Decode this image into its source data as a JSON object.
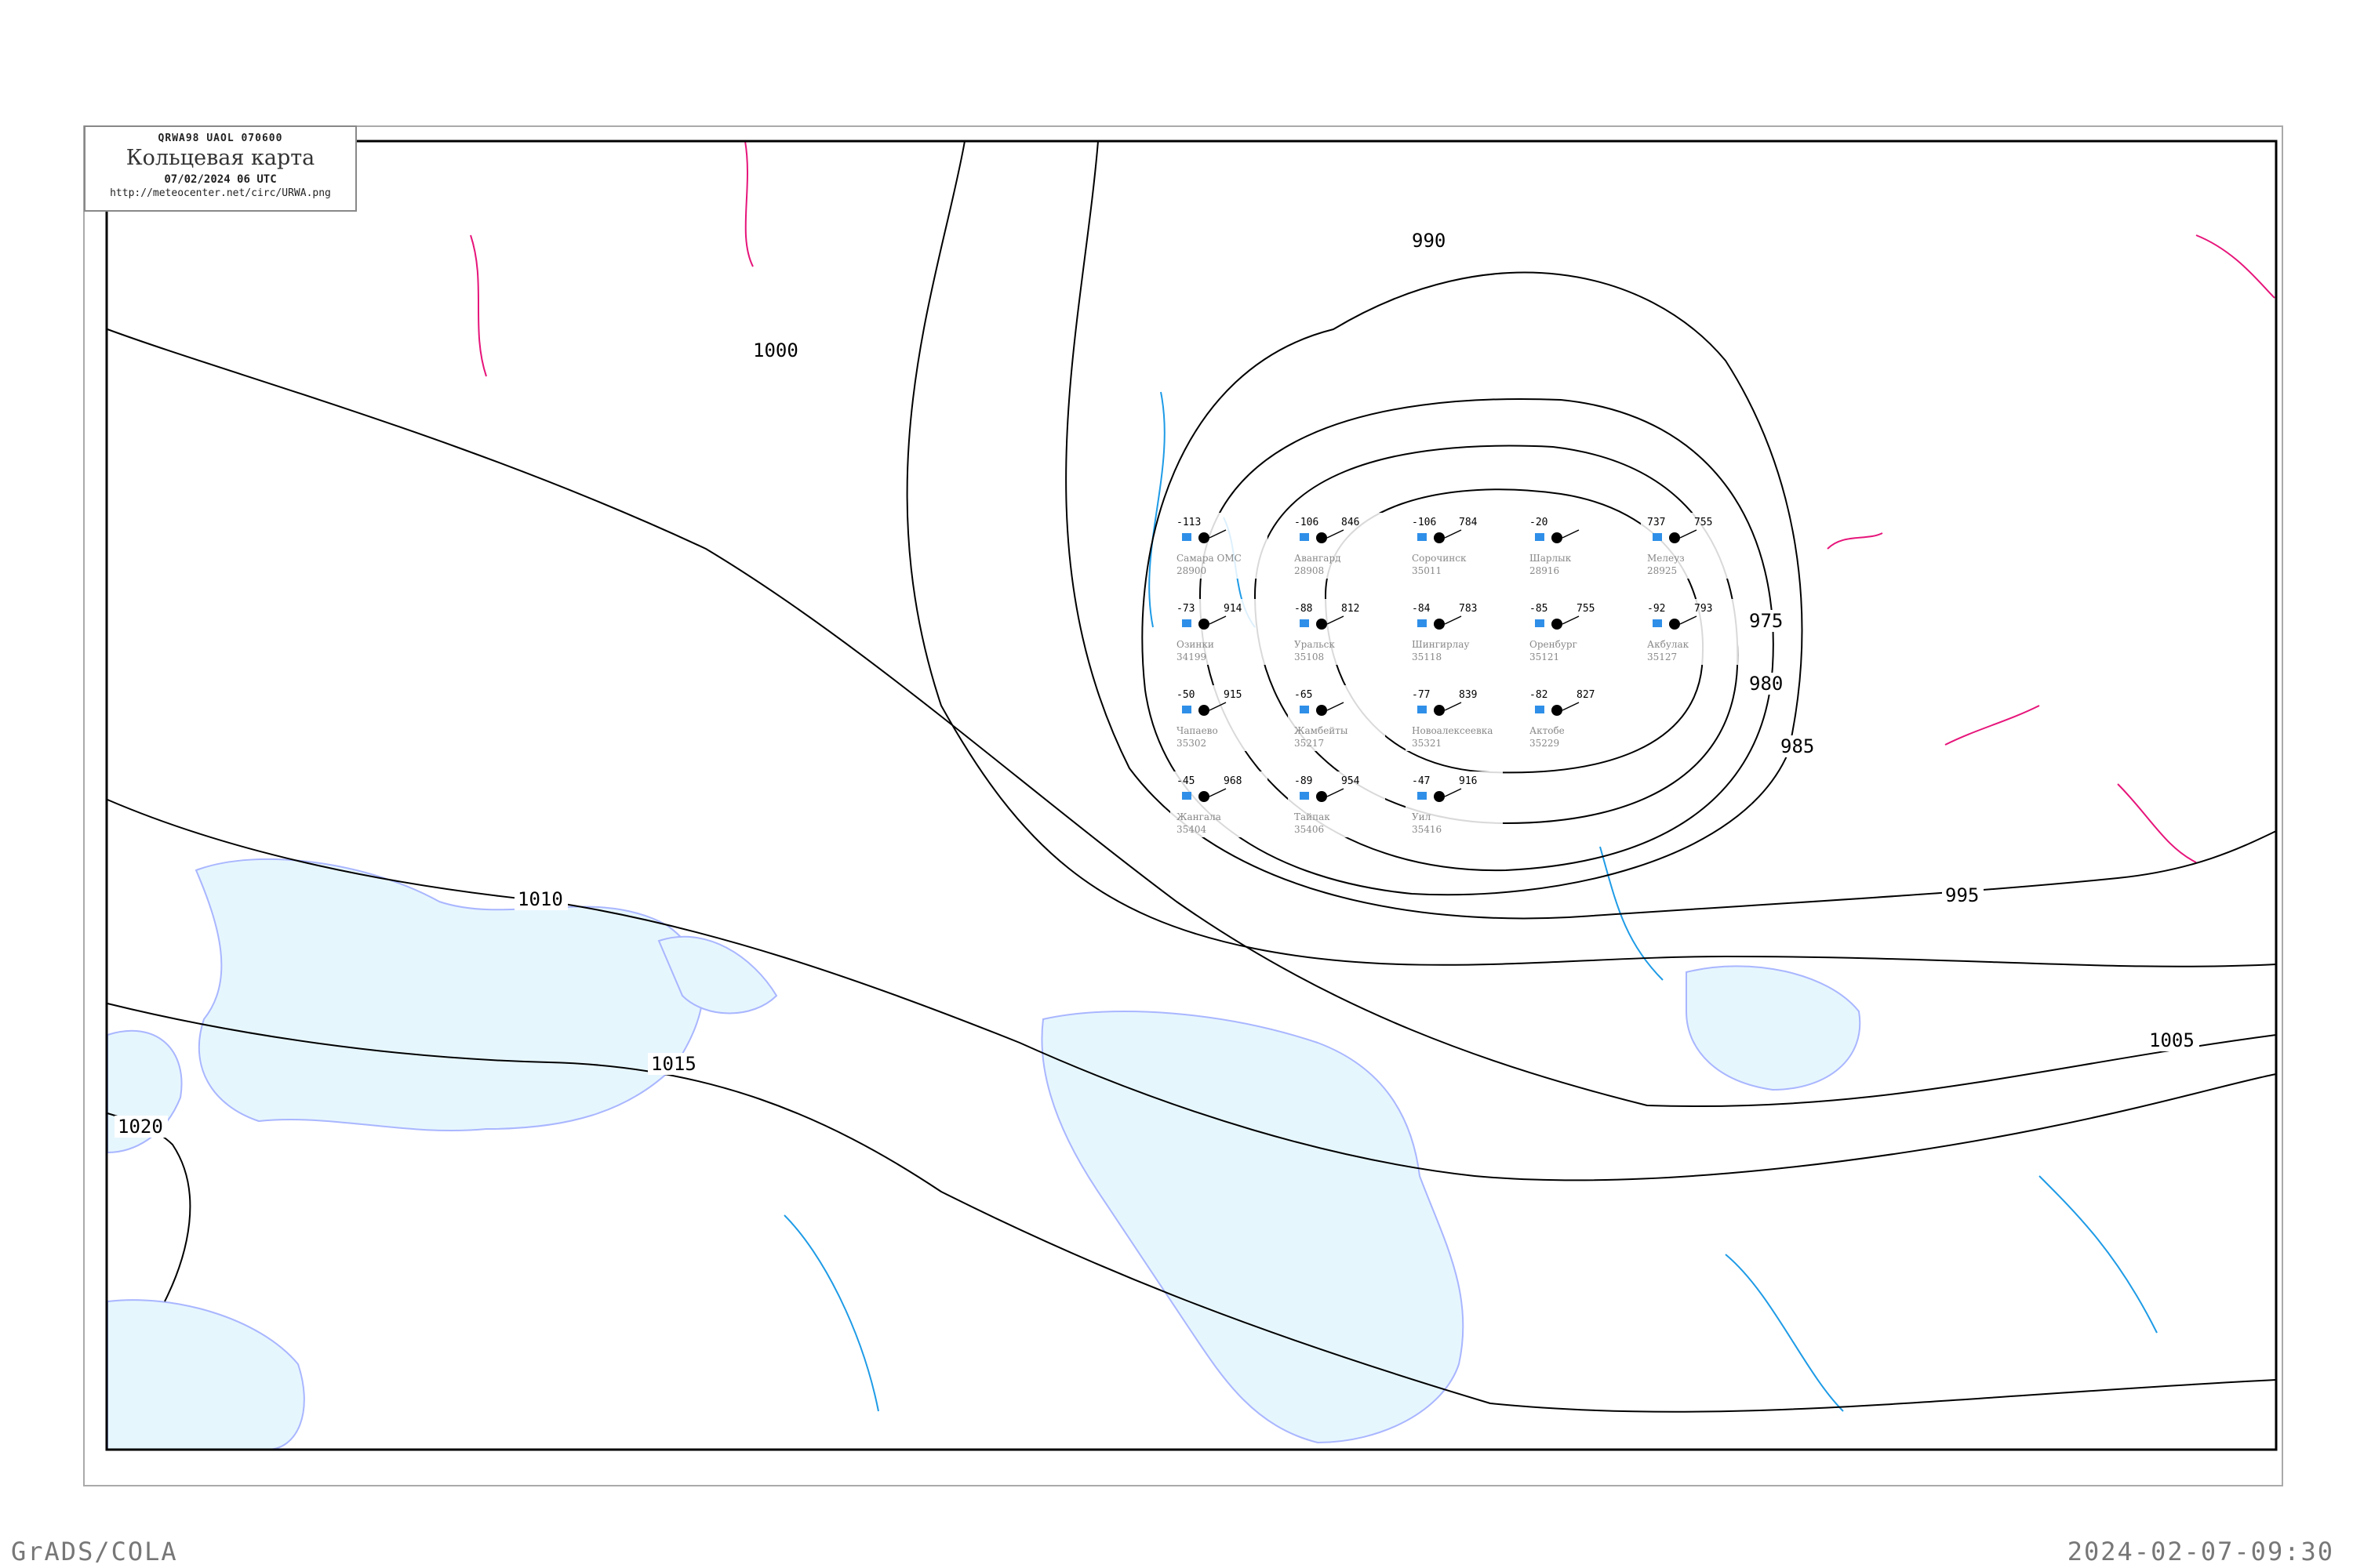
{
  "header": {
    "bulletin": "QRWA98   UAOL   070600",
    "title": "Кольцевая карта",
    "datetime": "07/02/2024 06 UTC",
    "url": "http://meteocenter.net/circ/URWA.png"
  },
  "footer": {
    "left": "GrADS/COLA",
    "right": "2024-02-07-09:30"
  },
  "colors": {
    "isobar": "#000000",
    "water": "#e6f6fd",
    "coast": "#a9b6ff",
    "isotherm": "#1e9be6",
    "front": "#e6147a",
    "precip_marker": "#2f8fe8",
    "station_name": "#888888"
  },
  "isobars": [
    {
      "label": "975"
    },
    {
      "label": "980"
    },
    {
      "label": "985"
    },
    {
      "label": "990"
    },
    {
      "label": "995"
    },
    {
      "label": "1000"
    },
    {
      "label": "1005"
    },
    {
      "label": "1010"
    },
    {
      "label": "1015"
    },
    {
      "label": "1020"
    }
  ],
  "stations": [
    {
      "name": "Самара ОМС",
      "index": "28900",
      "pressure": "",
      "temp": "-113"
    },
    {
      "name": "Авангард",
      "index": "28908",
      "pressure": "846",
      "temp": "-106"
    },
    {
      "name": "Шарлык",
      "index": "28916",
      "pressure": "",
      "temp": "-20"
    },
    {
      "name": "Мелеуз",
      "index": "28925",
      "pressure": "755",
      "temp": "737"
    },
    {
      "name": "Сорочинск",
      "index": "35011",
      "pressure": "784",
      "temp": "-106"
    },
    {
      "name": "Озинки",
      "index": "34199",
      "pressure": "914",
      "temp": "-73"
    },
    {
      "name": "Уральск",
      "index": "35108",
      "pressure": "812",
      "temp": "-88"
    },
    {
      "name": "Оренбург",
      "index": "35121",
      "pressure": "755",
      "temp": "-85"
    },
    {
      "name": "Шингирлау",
      "index": "35118",
      "pressure": "783",
      "temp": "-84"
    },
    {
      "name": "Акбулак",
      "index": "35127",
      "pressure": "793",
      "temp": "-92"
    },
    {
      "name": "Чапаево",
      "index": "35302",
      "pressure": "915",
      "temp": "-50"
    },
    {
      "name": "Жамбейты",
      "index": "35217",
      "pressure": "",
      "temp": "-65"
    },
    {
      "name": "Новоалексеевка",
      "index": "35321",
      "pressure": "839",
      "temp": "-77"
    },
    {
      "name": "Актобе",
      "index": "35229",
      "pressure": "827",
      "temp": "-82"
    },
    {
      "name": "Жангала",
      "index": "35404",
      "pressure": "968",
      "temp": "-45"
    },
    {
      "name": "Тайпак",
      "index": "35406",
      "pressure": "954",
      "temp": "-89"
    },
    {
      "name": "Уил",
      "index": "35416",
      "pressure": "916",
      "temp": "-47"
    }
  ]
}
